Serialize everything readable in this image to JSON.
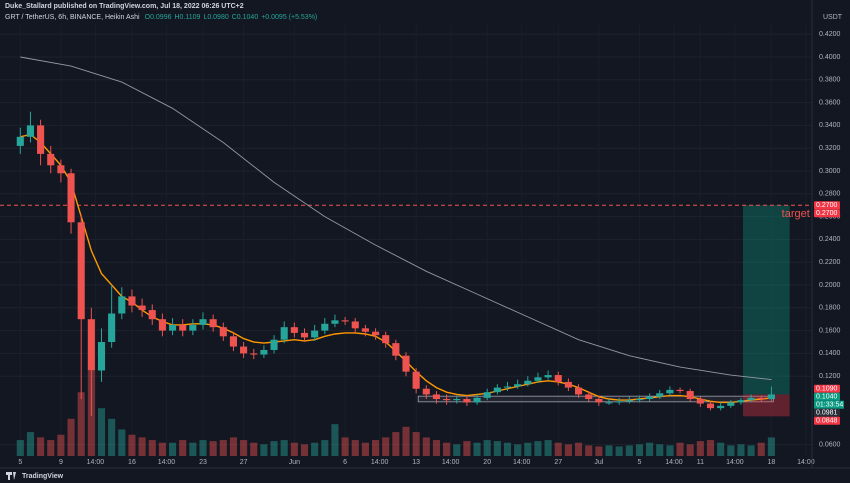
{
  "chart_data": {
    "type": "candlestick",
    "publisher": "Duke_Stallard published on TradingView.com, Jul 18, 2022 06:26 UTC+2",
    "title": "GRT / TetherUS, 6h, BINANCE, Heikin Ashi",
    "ohlc_readout": [
      "O0.0996",
      "H0.1109",
      "L0.0980",
      "C0.1040",
      "+0.0095 (+5.53%)"
    ],
    "currency": "USDT",
    "brand": "TradingView",
    "up_color": "#26a69a",
    "down_color": "#ef5350",
    "open": [
      0.322,
      0.33,
      0.34,
      0.315,
      0.305,
      0.298,
      0.255,
      0.17,
      0.125,
      0.15,
      0.175,
      0.19,
      0.182,
      0.178,
      0.17,
      0.16,
      0.165,
      0.16,
      0.165,
      0.17,
      0.163,
      0.155,
      0.146,
      0.14,
      0.139,
      0.143,
      0.152,
      0.163,
      0.158,
      0.154,
      0.16,
      0.166,
      0.169,
      0.168,
      0.162,
      0.159,
      0.156,
      0.149,
      0.138,
      0.124,
      0.109,
      0.104,
      0.1,
      0.099,
      0.1,
      0.097,
      0.101,
      0.106,
      0.11,
      0.111,
      0.113,
      0.116,
      0.119,
      0.121,
      0.115,
      0.11,
      0.104,
      0.1,
      0.097,
      0.097,
      0.098,
      0.099,
      0.1,
      0.102,
      0.105,
      0.108,
      0.107,
      0.1,
      0.096,
      0.092,
      0.094,
      0.097,
      0.099,
      0.101,
      0.1
    ],
    "high": [
      0.338,
      0.352,
      0.345,
      0.322,
      0.31,
      0.302,
      0.262,
      0.18,
      0.162,
      0.2,
      0.198,
      0.196,
      0.188,
      0.183,
      0.175,
      0.171,
      0.17,
      0.17,
      0.176,
      0.174,
      0.167,
      0.159,
      0.15,
      0.144,
      0.147,
      0.156,
      0.168,
      0.167,
      0.162,
      0.165,
      0.171,
      0.174,
      0.172,
      0.171,
      0.165,
      0.162,
      0.159,
      0.152,
      0.141,
      0.127,
      0.112,
      0.107,
      0.104,
      0.103,
      0.103,
      0.104,
      0.109,
      0.113,
      0.115,
      0.117,
      0.12,
      0.123,
      0.125,
      0.124,
      0.118,
      0.113,
      0.107,
      0.103,
      0.1,
      0.101,
      0.102,
      0.103,
      0.105,
      0.108,
      0.111,
      0.11,
      0.109,
      0.102,
      0.098,
      0.097,
      0.099,
      0.101,
      0.104,
      0.103,
      0.1109
    ],
    "low": [
      0.315,
      0.325,
      0.305,
      0.298,
      0.29,
      0.245,
      0.1,
      0.085,
      0.115,
      0.145,
      0.17,
      0.176,
      0.172,
      0.165,
      0.155,
      0.156,
      0.155,
      0.156,
      0.161,
      0.159,
      0.151,
      0.142,
      0.136,
      0.135,
      0.136,
      0.14,
      0.149,
      0.154,
      0.15,
      0.151,
      0.157,
      0.163,
      0.165,
      0.158,
      0.155,
      0.152,
      0.145,
      0.134,
      0.12,
      0.105,
      0.1,
      0.096,
      0.095,
      0.096,
      0.094,
      0.095,
      0.099,
      0.104,
      0.107,
      0.109,
      0.111,
      0.114,
      0.117,
      0.112,
      0.107,
      0.101,
      0.097,
      0.094,
      0.095,
      0.095,
      0.096,
      0.097,
      0.098,
      0.1,
      0.103,
      0.105,
      0.098,
      0.093,
      0.09,
      0.09,
      0.092,
      0.095,
      0.097,
      0.098,
      0.098
    ],
    "close": [
      0.33,
      0.34,
      0.315,
      0.305,
      0.298,
      0.255,
      0.17,
      0.125,
      0.15,
      0.175,
      0.19,
      0.182,
      0.178,
      0.17,
      0.16,
      0.165,
      0.16,
      0.165,
      0.17,
      0.163,
      0.155,
      0.146,
      0.14,
      0.139,
      0.143,
      0.152,
      0.163,
      0.158,
      0.154,
      0.16,
      0.166,
      0.169,
      0.168,
      0.162,
      0.159,
      0.156,
      0.149,
      0.138,
      0.124,
      0.109,
      0.104,
      0.1,
      0.099,
      0.1,
      0.097,
      0.101,
      0.106,
      0.11,
      0.111,
      0.113,
      0.116,
      0.119,
      0.121,
      0.115,
      0.11,
      0.104,
      0.1,
      0.097,
      0.097,
      0.098,
      0.099,
      0.1,
      0.102,
      0.105,
      0.108,
      0.107,
      0.1,
      0.096,
      0.092,
      0.094,
      0.097,
      0.099,
      0.101,
      0.1,
      0.104
    ],
    "volume": [
      30,
      45,
      35,
      30,
      40,
      70,
      120,
      160,
      90,
      70,
      50,
      40,
      35,
      30,
      25,
      25,
      30,
      25,
      30,
      28,
      30,
      35,
      30,
      25,
      22,
      28,
      30,
      25,
      22,
      25,
      30,
      60,
      35,
      30,
      25,
      30,
      35,
      45,
      55,
      45,
      35,
      30,
      25,
      22,
      28,
      25,
      30,
      28,
      25,
      22,
      25,
      28,
      30,
      25,
      22,
      25,
      20,
      18,
      20,
      18,
      20,
      22,
      25,
      22,
      20,
      25,
      22,
      28,
      30,
      25,
      20,
      22,
      20,
      25,
      35
    ],
    "overlays": [
      {
        "color": "#ff9800",
        "values": [
          0.33,
          0.332,
          0.325,
          0.315,
          0.305,
          0.29,
          0.26,
          0.23,
          0.21,
          0.2,
          0.19,
          0.185,
          0.178,
          0.172,
          0.168,
          0.165,
          0.165,
          0.166,
          0.166,
          0.165,
          0.162,
          0.158,
          0.153,
          0.15,
          0.149,
          0.15,
          0.151,
          0.152,
          0.151,
          0.152,
          0.155,
          0.157,
          0.158,
          0.158,
          0.157,
          0.155,
          0.15,
          0.142,
          0.133,
          0.124,
          0.116,
          0.11,
          0.106,
          0.104,
          0.103,
          0.104,
          0.105,
          0.107,
          0.109,
          0.111,
          0.113,
          0.115,
          0.116,
          0.115,
          0.113,
          0.11,
          0.106,
          0.102,
          0.1,
          0.099,
          0.099,
          0.1,
          0.101,
          0.102,
          0.103,
          0.103,
          0.102,
          0.1,
          0.098,
          0.097,
          0.097,
          0.098,
          0.099,
          0.1,
          0.101
        ]
      },
      {
        "color": "#9598a1",
        "x": [
          0,
          5,
          10,
          15,
          20,
          25,
          30,
          35,
          40,
          45,
          50,
          55,
          60,
          65,
          70,
          74
        ],
        "values": [
          0.4,
          0.392,
          0.378,
          0.355,
          0.325,
          0.29,
          0.26,
          0.235,
          0.212,
          0.192,
          0.172,
          0.152,
          0.138,
          0.128,
          0.121,
          0.117
        ]
      }
    ],
    "xlim": [
      -2,
      78
    ],
    "xticks": [
      {
        "value": 0,
        "label": "5"
      },
      {
        "value": 4,
        "label": "9"
      },
      {
        "value": 7.4,
        "label": "14:00"
      },
      {
        "value": 11,
        "label": "16"
      },
      {
        "value": 14.4,
        "label": "14:00"
      },
      {
        "value": 18,
        "label": "23"
      },
      {
        "value": 22,
        "label": "27"
      },
      {
        "value": 27,
        "label": "Jun"
      },
      {
        "value": 32,
        "label": "6"
      },
      {
        "value": 35.4,
        "label": "14:00"
      },
      {
        "value": 39,
        "label": "13"
      },
      {
        "value": 42.4,
        "label": "14:00"
      },
      {
        "value": 46,
        "label": "20"
      },
      {
        "value": 49.4,
        "label": "14:00"
      },
      {
        "value": 53,
        "label": "27"
      },
      {
        "value": 57,
        "label": "Jul"
      },
      {
        "value": 61,
        "label": "5"
      },
      {
        "value": 64.4,
        "label": "14:00"
      },
      {
        "value": 67,
        "label": "11"
      },
      {
        "value": 70.4,
        "label": "14:00"
      },
      {
        "value": 74,
        "label": "18"
      },
      {
        "value": 77.4,
        "label": "14:00"
      }
    ],
    "ylim": [
      0.05,
      0.45
    ],
    "yticks": [
      {
        "value": 0.06,
        "label": "0.0600"
      },
      {
        "value": 0.12,
        "label": "0.1200"
      },
      {
        "value": 0.14,
        "label": "0.1400"
      },
      {
        "value": 0.16,
        "label": "0.1600"
      },
      {
        "value": 0.18,
        "label": "0.1800"
      },
      {
        "value": 0.2,
        "label": "0.2000"
      },
      {
        "value": 0.22,
        "label": "0.2200"
      },
      {
        "value": 0.24,
        "label": "0.2400"
      },
      {
        "value": 0.26,
        "label": "0.2600"
      },
      {
        "value": 0.28,
        "label": "0.2800"
      },
      {
        "value": 0.3,
        "label": "0.3000"
      },
      {
        "value": 0.32,
        "label": "0.3200"
      },
      {
        "value": 0.34,
        "label": "0.3400"
      },
      {
        "value": 0.36,
        "label": "0.3600"
      },
      {
        "value": 0.38,
        "label": "0.3800"
      },
      {
        "value": 0.4,
        "label": "0.4000"
      },
      {
        "value": 0.42,
        "label": "0.4200"
      }
    ],
    "target_line": {
      "value": 0.27,
      "color": "#ef5350",
      "label": "target"
    },
    "position": {
      "x": [
        71.2,
        75.8
      ],
      "target": 0.27,
      "entry": 0.104,
      "stop": 0.0848
    },
    "zone": {
      "x": [
        39.2,
        74.2
      ],
      "y": [
        0.0975,
        0.1025
      ]
    },
    "price_labels": [
      {
        "value": 0.27,
        "label": "0.2700",
        "color": "#f23645"
      },
      {
        "value": 0.27,
        "label": "0.2700",
        "color": "#f23645"
      },
      {
        "value": 0.109,
        "label": "0.1090",
        "color": "#f23645"
      },
      {
        "value": 0.104,
        "label": "0.1040",
        "color": "#089981"
      },
      {
        "value": 0.0981,
        "label": "0.0981",
        "color": "#2a2e39"
      },
      {
        "value": 0.0848,
        "label": "0.0848",
        "color": "#f23645"
      }
    ],
    "countdown": "01:33:54"
  }
}
